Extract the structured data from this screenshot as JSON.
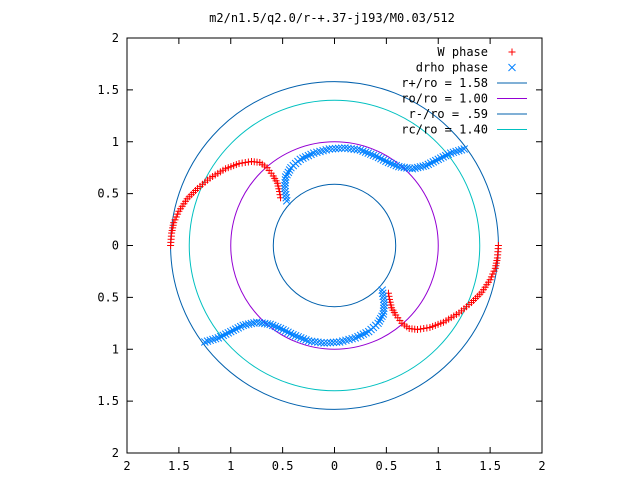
{
  "chart_data": {
    "type": "scatter",
    "title": "m2/n1.5/q2.0/r-+.37-j193/M0.03/512",
    "xlim": [
      -2,
      2
    ],
    "ylim": [
      -2,
      2
    ],
    "grid": false,
    "legend_placement": "top-right",
    "x_ticks": [
      {
        "value": -2,
        "label": "2"
      },
      {
        "value": -1.5,
        "label": "1.5"
      },
      {
        "value": -1,
        "label": "1"
      },
      {
        "value": -0.5,
        "label": "0.5"
      },
      {
        "value": 0,
        "label": "0"
      },
      {
        "value": 0.5,
        "label": "0.5"
      },
      {
        "value": 1,
        "label": "1"
      },
      {
        "value": 1.5,
        "label": "1.5"
      },
      {
        "value": 2,
        "label": "2"
      }
    ],
    "y_ticks": [
      {
        "value": 2,
        "label": "2"
      },
      {
        "value": 1.5,
        "label": "1.5"
      },
      {
        "value": 1,
        "label": "1"
      },
      {
        "value": 0.5,
        "label": "0.5"
      },
      {
        "value": 0,
        "label": "0"
      },
      {
        "value": -0.5,
        "label": "0.5"
      },
      {
        "value": -1,
        "label": "1"
      },
      {
        "value": -1.5,
        "label": "1.5"
      },
      {
        "value": -2,
        "label": "2"
      }
    ],
    "series": [
      {
        "name": "W phase",
        "kind": "points",
        "marker": "plus",
        "color": "#ff0000",
        "segments": [
          [
            [
              -1.58,
              0.0
            ],
            [
              -1.57,
              0.12
            ],
            [
              -1.55,
              0.22
            ],
            [
              -1.5,
              0.33
            ],
            [
              -1.42,
              0.45
            ],
            [
              -1.32,
              0.55
            ],
            [
              -1.2,
              0.65
            ],
            [
              -1.05,
              0.74
            ],
            [
              -0.92,
              0.79
            ],
            [
              -0.8,
              0.81
            ],
            [
              -0.72,
              0.8
            ],
            [
              -0.65,
              0.75
            ],
            [
              -0.59,
              0.67
            ],
            [
              -0.55,
              0.6
            ],
            [
              -0.53,
              0.52
            ],
            [
              -0.52,
              0.46
            ]
          ],
          [
            [
              1.58,
              0.0
            ],
            [
              1.57,
              -0.12
            ],
            [
              1.55,
              -0.22
            ],
            [
              1.5,
              -0.33
            ],
            [
              1.42,
              -0.45
            ],
            [
              1.32,
              -0.55
            ],
            [
              1.2,
              -0.65
            ],
            [
              1.05,
              -0.74
            ],
            [
              0.92,
              -0.79
            ],
            [
              0.8,
              -0.81
            ],
            [
              0.72,
              -0.8
            ],
            [
              0.65,
              -0.75
            ],
            [
              0.59,
              -0.67
            ],
            [
              0.55,
              -0.6
            ],
            [
              0.53,
              -0.52
            ],
            [
              0.52,
              -0.46
            ]
          ]
        ]
      },
      {
        "name": "drho phase",
        "kind": "points",
        "marker": "cross",
        "color": "#0080ff",
        "segments": [
          [
            [
              -0.46,
              0.43
            ],
            [
              -0.48,
              0.55
            ],
            [
              -0.47,
              0.66
            ],
            [
              -0.42,
              0.75
            ],
            [
              -0.33,
              0.83
            ],
            [
              -0.2,
              0.89
            ],
            [
              -0.05,
              0.93
            ],
            [
              0.1,
              0.94
            ],
            [
              0.25,
              0.92
            ],
            [
              0.4,
              0.86
            ],
            [
              0.52,
              0.8
            ],
            [
              0.62,
              0.76
            ],
            [
              0.75,
              0.74
            ],
            [
              0.88,
              0.77
            ],
            [
              1.0,
              0.83
            ],
            [
              1.12,
              0.89
            ],
            [
              1.25,
              0.93
            ]
          ],
          [
            [
              0.46,
              -0.43
            ],
            [
              0.48,
              -0.55
            ],
            [
              0.47,
              -0.66
            ],
            [
              0.42,
              -0.75
            ],
            [
              0.33,
              -0.83
            ],
            [
              0.2,
              -0.89
            ],
            [
              0.05,
              -0.93
            ],
            [
              -0.1,
              -0.94
            ],
            [
              -0.25,
              -0.92
            ],
            [
              -0.4,
              -0.86
            ],
            [
              -0.52,
              -0.8
            ],
            [
              -0.62,
              -0.76
            ],
            [
              -0.75,
              -0.74
            ],
            [
              -0.88,
              -0.77
            ],
            [
              -1.0,
              -0.83
            ],
            [
              -1.12,
              -0.89
            ],
            [
              -1.25,
              -0.93
            ]
          ]
        ]
      },
      {
        "name": "r+/ro = 1.58",
        "kind": "circle",
        "radius": 1.58,
        "color": "#0060ad"
      },
      {
        "name": "ro/ro = 1.00",
        "kind": "circle",
        "radius": 1.0,
        "color": "#9400d3"
      },
      {
        "name": "r-/ro = .59",
        "kind": "circle",
        "radius": 0.59,
        "color": "#0060ad"
      },
      {
        "name": "rc/ro = 1.40",
        "kind": "circle",
        "radius": 1.4,
        "color": "#00c0c0"
      }
    ]
  }
}
